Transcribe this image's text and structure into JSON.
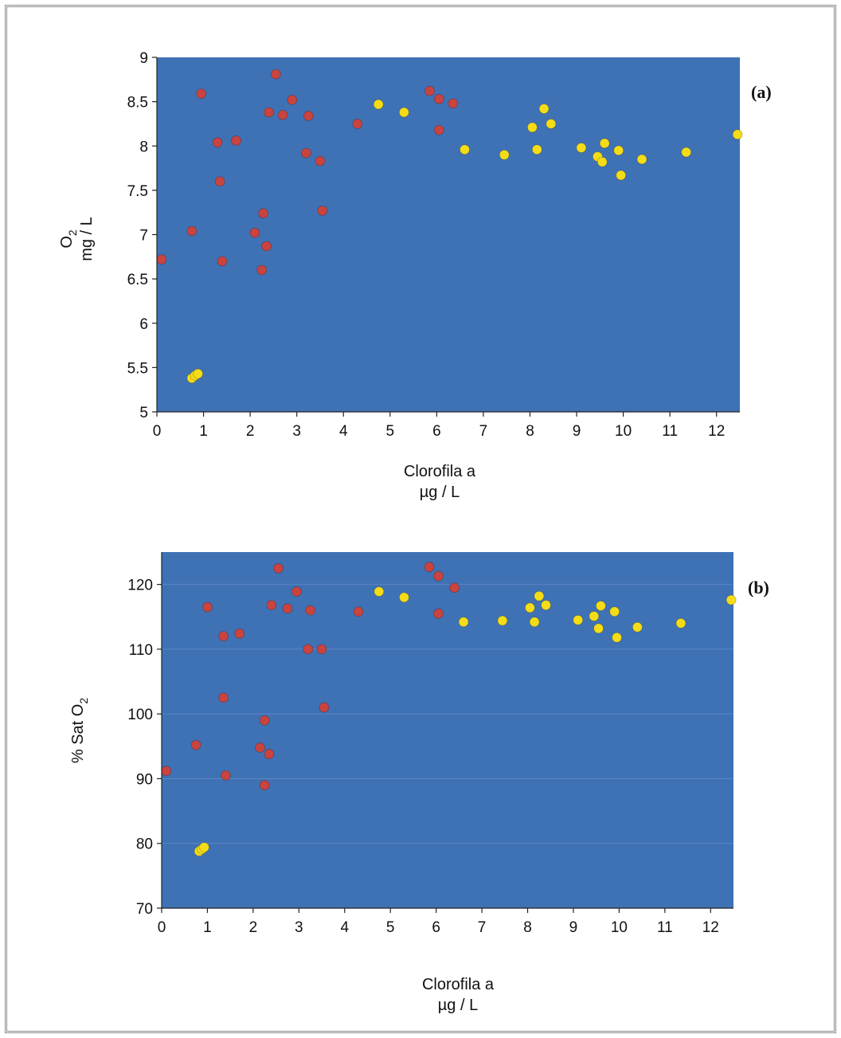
{
  "colors": {
    "plot_bg": "#3f72b5",
    "series_red": "#c9433f",
    "series_yellow": "#f4dc18",
    "axis": "#222222"
  },
  "chart_data": [
    {
      "type": "scatter",
      "panel_label": "(a)",
      "xlabel_line1": "Clorofila a",
      "xlabel_line2": "µg / L",
      "ylabel_line1": "O",
      "ylabel_sub1": "2",
      "ylabel_line2": "mg / L",
      "xlim": [
        0,
        12.5
      ],
      "ylim": [
        5,
        9
      ],
      "xticks": [
        0,
        1,
        2,
        3,
        4,
        5,
        6,
        7,
        8,
        9,
        10,
        11,
        12
      ],
      "yticks": [
        5,
        5.5,
        6,
        6.5,
        7,
        7.5,
        8,
        8.5,
        9
      ],
      "grid": false,
      "series": [
        {
          "color": "#c9433f",
          "points": [
            [
              0.1,
              6.72
            ],
            [
              0.75,
              7.04
            ],
            [
              0.95,
              8.59
            ],
            [
              1.3,
              8.04
            ],
            [
              1.35,
              7.6
            ],
            [
              1.4,
              6.7
            ],
            [
              1.7,
              8.06
            ],
            [
              2.1,
              7.02
            ],
            [
              2.25,
              6.6
            ],
            [
              2.28,
              7.24
            ],
            [
              2.35,
              6.87
            ],
            [
              2.4,
              8.38
            ],
            [
              2.55,
              8.81
            ],
            [
              2.7,
              8.35
            ],
            [
              2.9,
              8.52
            ],
            [
              3.2,
              7.92
            ],
            [
              3.25,
              8.34
            ],
            [
              3.5,
              7.83
            ],
            [
              3.55,
              7.27
            ],
            [
              4.3,
              8.25
            ],
            [
              5.85,
              8.62
            ],
            [
              6.05,
              8.53
            ],
            [
              6.05,
              8.18
            ],
            [
              6.35,
              8.48
            ]
          ]
        },
        {
          "color": "#f4dc18",
          "points": [
            [
              0.75,
              5.38
            ],
            [
              0.82,
              5.41
            ],
            [
              0.88,
              5.43
            ],
            [
              4.75,
              8.47
            ],
            [
              5.3,
              8.38
            ],
            [
              6.6,
              7.96
            ],
            [
              7.45,
              7.9
            ],
            [
              8.05,
              8.21
            ],
            [
              8.15,
              7.96
            ],
            [
              8.3,
              8.42
            ],
            [
              8.45,
              8.25
            ],
            [
              9.1,
              7.98
            ],
            [
              9.45,
              7.88
            ],
            [
              9.55,
              7.82
            ],
            [
              9.6,
              8.03
            ],
            [
              9.9,
              7.95
            ],
            [
              9.95,
              7.67
            ],
            [
              10.4,
              7.85
            ],
            [
              11.35,
              7.93
            ],
            [
              12.45,
              8.13
            ]
          ]
        }
      ]
    },
    {
      "type": "scatter",
      "panel_label": "(b)",
      "xlabel_line1": "Clorofila a",
      "xlabel_line2": "µg / L",
      "ylabel_prefix": "% Sat O",
      "ylabel_sub": "2",
      "xlim": [
        0,
        12.5
      ],
      "ylim": [
        70,
        125
      ],
      "xticks": [
        0,
        1,
        2,
        3,
        4,
        5,
        6,
        7,
        8,
        9,
        10,
        11,
        12
      ],
      "yticks": [
        70,
        80,
        90,
        100,
        110,
        120
      ],
      "grid": true,
      "series": [
        {
          "color": "#c9433f",
          "points": [
            [
              0.1,
              91.2
            ],
            [
              0.75,
              95.2
            ],
            [
              1.0,
              116.5
            ],
            [
              1.35,
              112
            ],
            [
              1.35,
              102.5
            ],
            [
              1.4,
              90.5
            ],
            [
              1.7,
              112.4
            ],
            [
              2.15,
              94.8
            ],
            [
              2.25,
              89
            ],
            [
              2.25,
              99
            ],
            [
              2.35,
              93.8
            ],
            [
              2.4,
              116.8
            ],
            [
              2.55,
              122.5
            ],
            [
              2.75,
              116.3
            ],
            [
              2.95,
              118.9
            ],
            [
              3.2,
              110
            ],
            [
              3.25,
              116
            ],
            [
              3.5,
              110
            ],
            [
              3.55,
              101
            ],
            [
              4.3,
              115.8
            ],
            [
              5.85,
              122.7
            ],
            [
              6.05,
              121.3
            ],
            [
              6.05,
              115.5
            ],
            [
              6.4,
              119.5
            ]
          ]
        },
        {
          "color": "#f4dc18",
          "points": [
            [
              0.82,
              78.8
            ],
            [
              0.88,
              79.1
            ],
            [
              0.93,
              79.4
            ],
            [
              4.75,
              118.9
            ],
            [
              5.3,
              118
            ],
            [
              6.6,
              114.2
            ],
            [
              7.45,
              114.4
            ],
            [
              8.05,
              116.4
            ],
            [
              8.15,
              114.2
            ],
            [
              8.25,
              118.2
            ],
            [
              8.4,
              116.8
            ],
            [
              9.1,
              114.5
            ],
            [
              9.45,
              115.1
            ],
            [
              9.55,
              113.2
            ],
            [
              9.6,
              116.7
            ],
            [
              9.9,
              115.8
            ],
            [
              9.95,
              111.8
            ],
            [
              10.4,
              113.4
            ],
            [
              11.35,
              114
            ],
            [
              12.45,
              117.6
            ]
          ]
        }
      ]
    }
  ]
}
